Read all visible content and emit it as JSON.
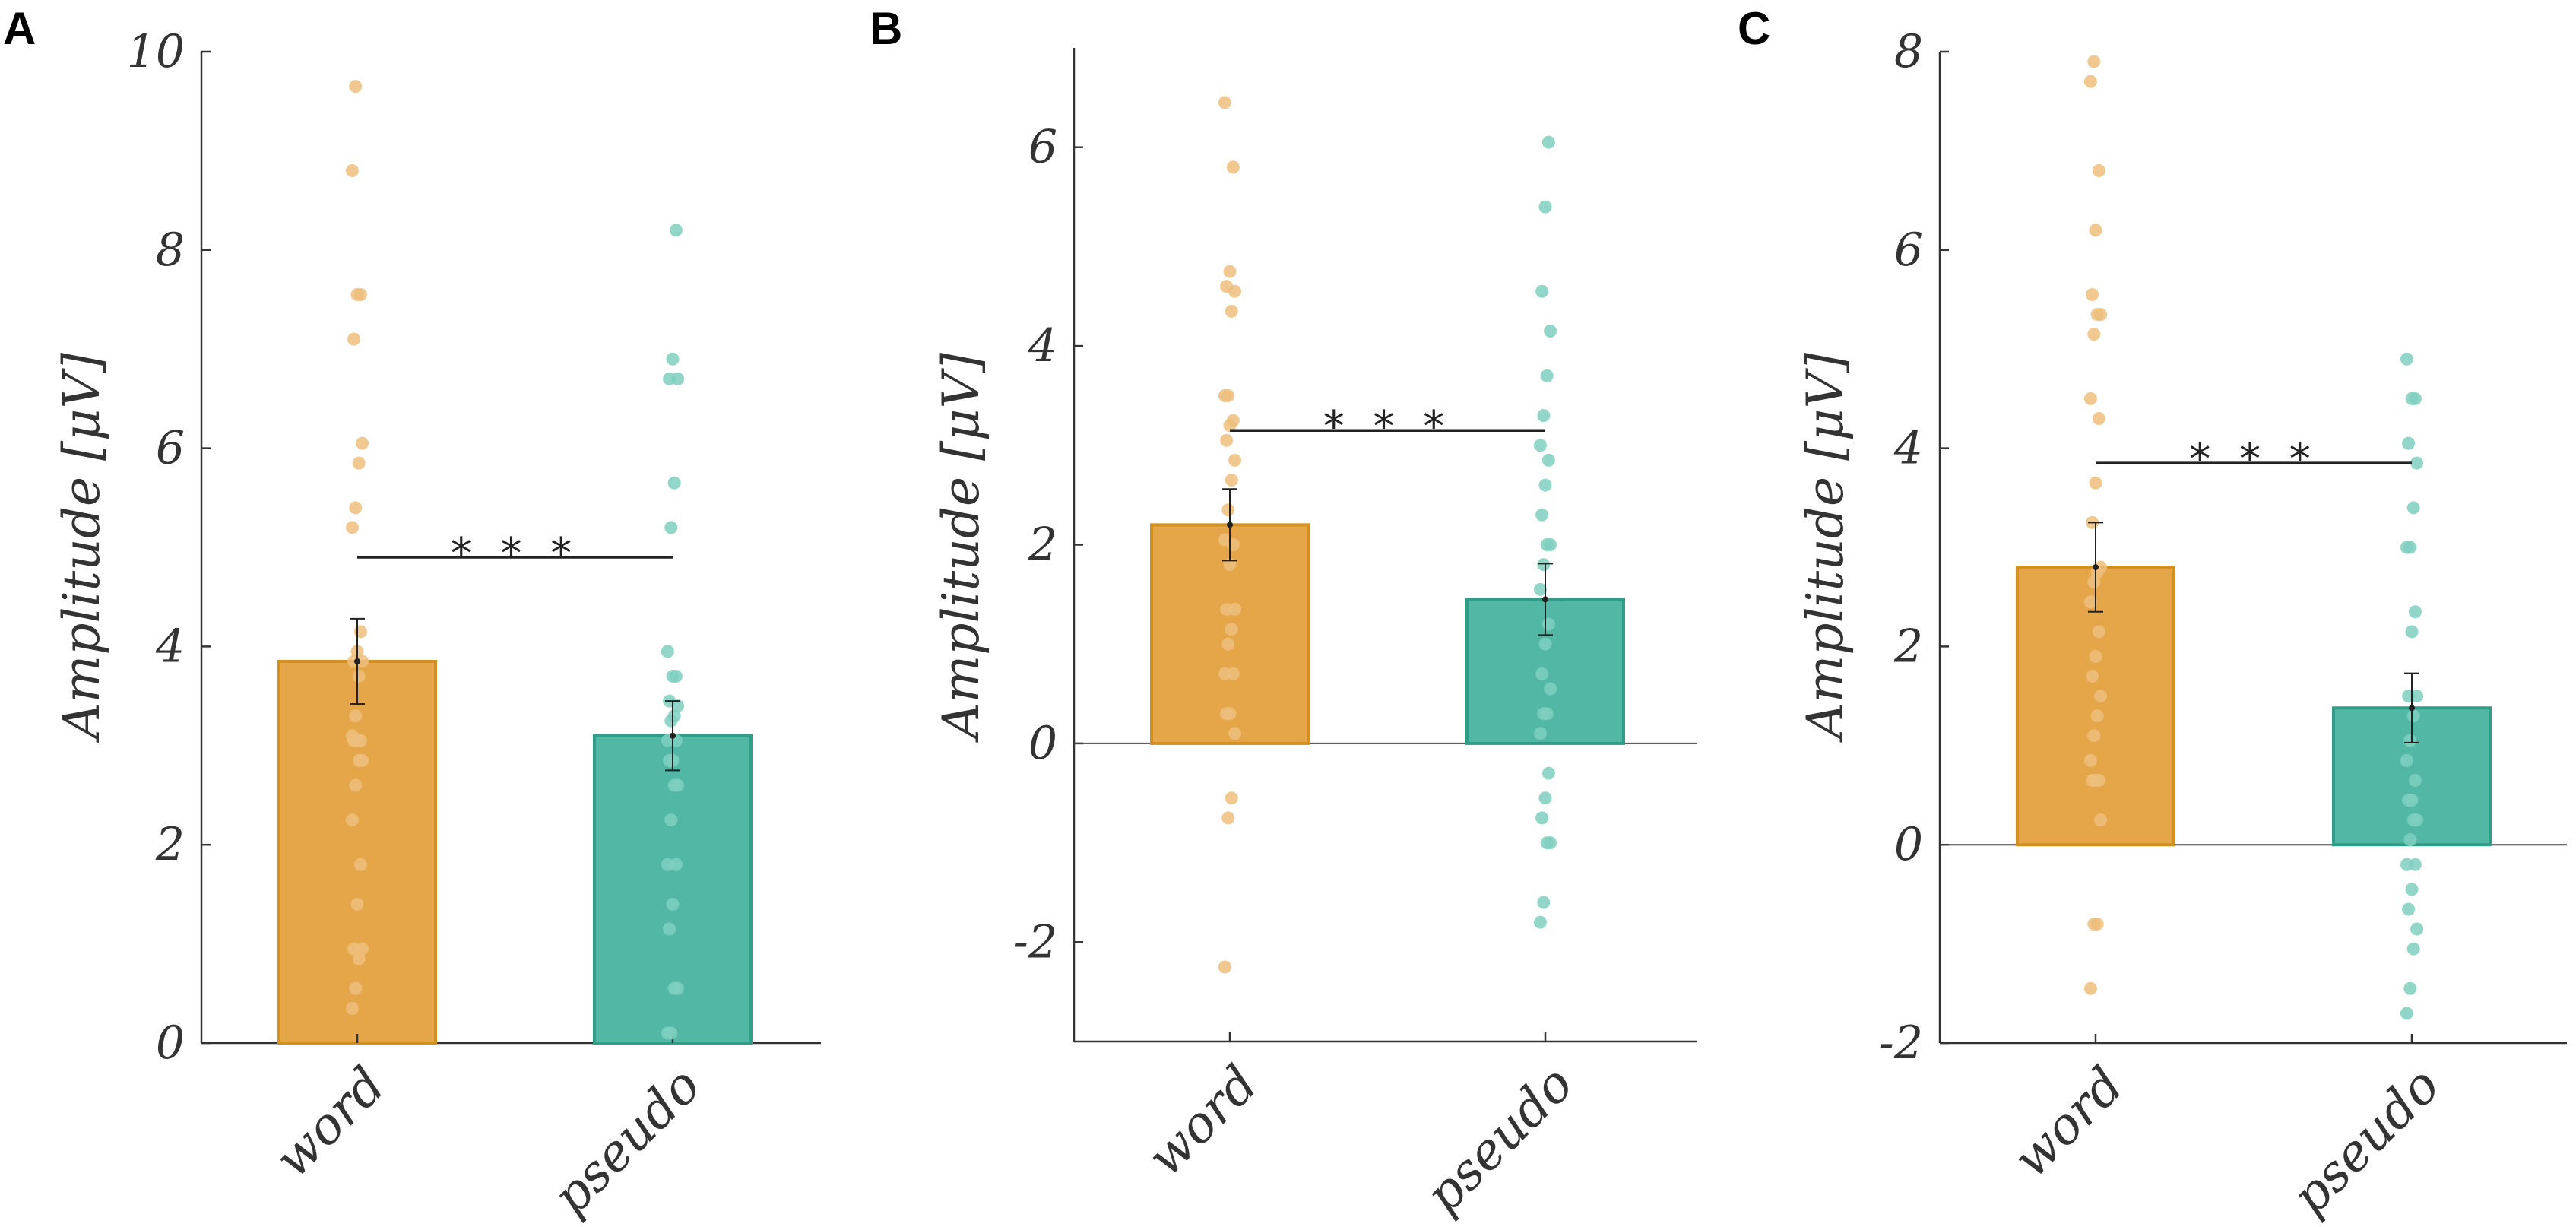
{
  "colors": {
    "word_fill": "#E5A64A",
    "word_edge": "#D4901F",
    "word_dot": "#EDBE7C",
    "pseudo_fill": "#52B8A5",
    "pseudo_edge": "#2E9E88",
    "pseudo_dot": "#7FCFC0",
    "axis": "#333333"
  },
  "chart_data": [
    {
      "panel": "A",
      "type": "bar",
      "ylabel": "Amplitude [μV]",
      "ylim": [
        0,
        10
      ],
      "yticks": [
        "0",
        "2",
        "4",
        "6",
        "8",
        "10"
      ],
      "categories": [
        "word",
        "pseudo"
      ],
      "means": [
        3.85,
        3.1
      ],
      "sem": [
        0.43,
        0.35
      ],
      "significance": {
        "label": "* * *",
        "y": 4.9
      },
      "points": [
        [
          0.35,
          0.55,
          0.85,
          0.95,
          0.95,
          1.4,
          1.8,
          2.25,
          2.6,
          2.85,
          2.85,
          3.05,
          3.05,
          3.05,
          3.1,
          3.3,
          3.7,
          3.85,
          3.85,
          3.95,
          4.15,
          5.2,
          5.4,
          5.85,
          6.05,
          7.1,
          7.55,
          7.55,
          8.8,
          9.65
        ],
        [
          0.1,
          0.1,
          0.55,
          0.55,
          1.15,
          1.4,
          1.8,
          1.8,
          2.25,
          2.6,
          2.6,
          2.85,
          2.85,
          3.05,
          3.05,
          3.25,
          3.3,
          3.4,
          3.45,
          3.7,
          3.7,
          3.95,
          5.2,
          5.65,
          6.7,
          6.7,
          6.9,
          8.2
        ]
      ]
    },
    {
      "panel": "B",
      "type": "bar",
      "ylabel": "Amplitude [μV]",
      "ylim": [
        -3,
        7
      ],
      "yticks": [
        "-2",
        "0",
        "2",
        "4",
        "6"
      ],
      "categories": [
        "word",
        "pseudo"
      ],
      "means": [
        2.2,
        1.45
      ],
      "sem": [
        0.36,
        0.36
      ],
      "significance": {
        "label": "* * *",
        "y": 3.15
      },
      "points": [
        [
          -2.25,
          -0.75,
          -0.55,
          0.1,
          0.3,
          0.3,
          0.7,
          0.7,
          1.0,
          1.15,
          1.35,
          1.35,
          1.8,
          2.0,
          2.05,
          2.35,
          2.65,
          2.85,
          3.05,
          3.2,
          3.25,
          3.5,
          3.5,
          4.35,
          4.55,
          4.6,
          4.75,
          5.8,
          6.45
        ],
        [
          -1.8,
          -1.6,
          -1.0,
          -1.0,
          -0.75,
          -0.55,
          -0.3,
          0.1,
          0.3,
          0.3,
          0.55,
          0.7,
          1.0,
          1.2,
          1.55,
          1.8,
          2.0,
          2.0,
          2.3,
          2.6,
          2.85,
          3.0,
          3.3,
          3.7,
          4.15,
          4.55,
          5.4,
          6.05
        ]
      ]
    },
    {
      "panel": "C",
      "type": "bar",
      "ylabel": "Amplitude [μV]",
      "ylim": [
        -2,
        8
      ],
      "yticks": [
        "-2",
        "0",
        "2",
        "4",
        "6",
        "8"
      ],
      "categories": [
        "word",
        "pseudo"
      ],
      "means": [
        2.8,
        1.38
      ],
      "sem": [
        0.45,
        0.35
      ],
      "significance": {
        "label": "* * *",
        "y": 3.85
      },
      "points": [
        [
          -1.45,
          -0.8,
          -0.8,
          0.25,
          0.65,
          0.65,
          0.65,
          0.85,
          1.1,
          1.3,
          1.5,
          1.7,
          1.9,
          2.15,
          2.45,
          2.65,
          2.75,
          2.8,
          3.25,
          3.65,
          4.3,
          4.5,
          5.15,
          5.35,
          5.35,
          5.55,
          6.2,
          6.8,
          7.7,
          7.9
        ],
        [
          -1.7,
          -1.45,
          -1.05,
          -0.85,
          -0.65,
          -0.45,
          -0.2,
          -0.2,
          0.05,
          0.25,
          0.25,
          0.45,
          0.45,
          0.65,
          0.85,
          1.05,
          1.3,
          1.5,
          1.5,
          2.15,
          2.35,
          3.0,
          3.0,
          3.4,
          3.85,
          4.05,
          4.5,
          4.5,
          4.9
        ]
      ]
    }
  ]
}
